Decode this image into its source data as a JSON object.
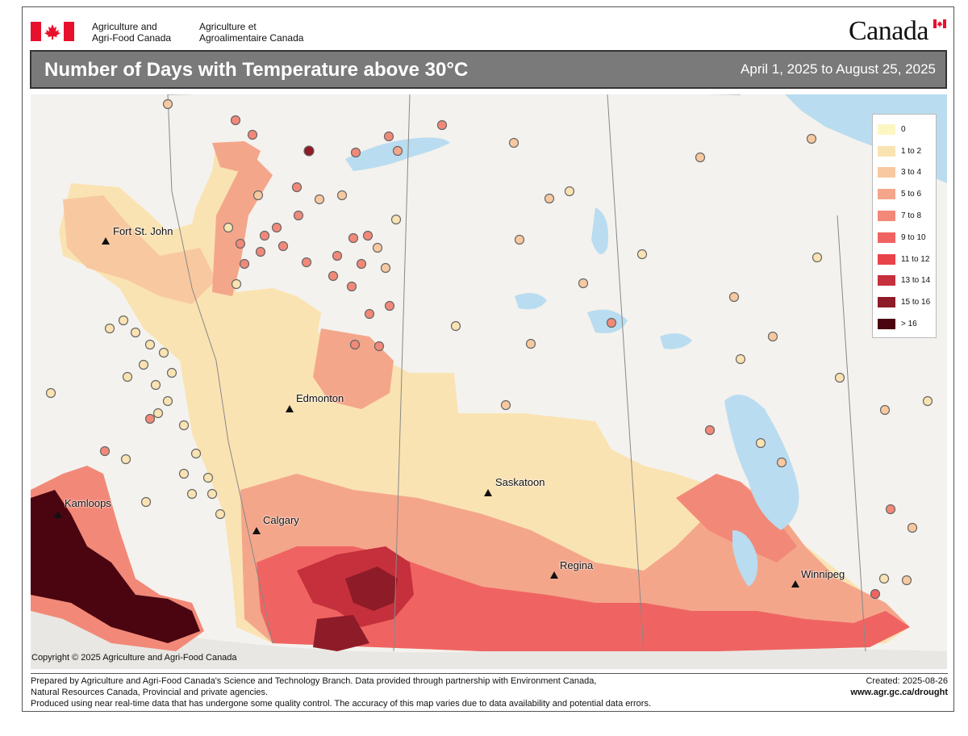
{
  "header": {
    "agency_en_line1": "Agriculture and",
    "agency_en_line2": "Agri-Food Canada",
    "agency_fr_line1": "Agriculture et",
    "agency_fr_line2": "Agroalimentaire Canada",
    "wordmark": "Canada",
    "flag_color": "#e8112d"
  },
  "title_bar": {
    "title": "Number of Days with Temperature above 30°C",
    "date_range": "April 1, 2025 to August 25, 2025",
    "background": "#7a7a7a"
  },
  "map": {
    "cities": [
      {
        "name": "Fort St. John"
      },
      {
        "name": "Edmonton"
      },
      {
        "name": "Kamloops"
      },
      {
        "name": "Calgary"
      },
      {
        "name": "Saskatoon"
      },
      {
        "name": "Regina"
      },
      {
        "name": "Winnipeg"
      }
    ],
    "copyright": "Copyright © 2025 Agriculture and Agri-Food Canada",
    "water_color": "#b9dcf0",
    "land_color": "#f4f2ee"
  },
  "legend": {
    "items": [
      {
        "label": "0",
        "color": "#fdf6c3"
      },
      {
        "label": "1 to 2",
        "color": "#fae3b2"
      },
      {
        "label": "3 to 4",
        "color": "#f8c9a0"
      },
      {
        "label": "5 to 6",
        "color": "#f4a68b"
      },
      {
        "label": "7 to 8",
        "color": "#f28978"
      },
      {
        "label": "9 to 10",
        "color": "#ef6462"
      },
      {
        "label": "11 to 12",
        "color": "#e8434b"
      },
      {
        "label": "13 to 14",
        "color": "#c5303c"
      },
      {
        "label": "15 to 16",
        "color": "#8e1b28"
      },
      {
        "label": "> 16",
        "color": "#4a0510"
      }
    ]
  },
  "footer": {
    "line1": "Prepared by Agriculture and Agri-Food Canada's Science and Technology Branch. Data provided through partnership with Environment Canada,",
    "line2": "Natural Resources Canada, Provincial and private agencies.",
    "line3": "Produced using near real-time data that has undergone some quality control. The accuracy of this map varies due to data availability and potential data errors.",
    "created": "Created:  2025-08-26",
    "url": "www.agr.gc.ca/drought"
  }
}
